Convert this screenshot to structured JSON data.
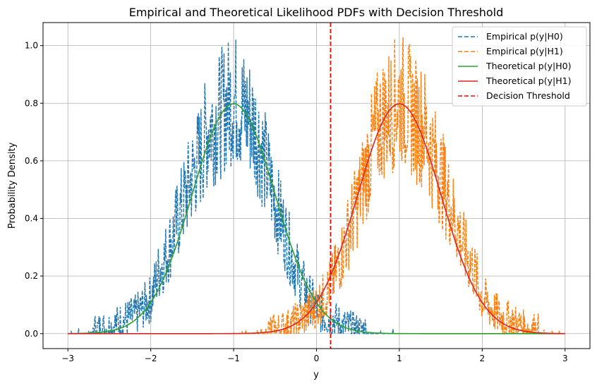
{
  "chart_data": {
    "type": "line",
    "title": "Empirical and Theoretical Likelihood PDFs with Decision Threshold",
    "xlabel": "y",
    "ylabel": "Probability Density",
    "xlim": [
      -3.3,
      3.3
    ],
    "ylim": [
      -0.052,
      1.08
    ],
    "xticks": [
      -3,
      -2,
      -1,
      0,
      1,
      2,
      3
    ],
    "xtick_labels": [
      "−3",
      "−2",
      "−1",
      "0",
      "1",
      "2",
      "3"
    ],
    "yticks": [
      0.0,
      0.2,
      0.4,
      0.6,
      0.8,
      1.0
    ],
    "ytick_labels": [
      "0.0",
      "0.2",
      "0.4",
      "0.6",
      "0.8",
      "1.0"
    ],
    "grid": true,
    "legend_position": "top-right",
    "decision_threshold": 0.17,
    "series": [
      {
        "name": "Empirical p(y|H0)",
        "style": "dashed",
        "color": "#1f77b4",
        "x": [
          -3.0,
          -2.7,
          -2.5,
          -2.3,
          -2.2,
          -2.1,
          -2.0,
          -1.9,
          -1.8,
          -1.7,
          -1.6,
          -1.5,
          -1.4,
          -1.3,
          -1.2,
          -1.1,
          -1.0,
          -0.9,
          -0.8,
          -0.7,
          -0.6,
          -0.5,
          -0.4,
          -0.3,
          -0.2,
          -0.1,
          0.0,
          0.1,
          0.2,
          0.3,
          0.4,
          0.5,
          0.6,
          0.8,
          1.0
        ],
        "y": [
          0.0,
          0.01,
          0.02,
          0.05,
          0.06,
          0.09,
          0.12,
          0.22,
          0.28,
          0.37,
          0.46,
          0.55,
          0.62,
          0.72,
          0.74,
          0.79,
          0.82,
          0.78,
          0.75,
          0.68,
          0.57,
          0.46,
          0.37,
          0.27,
          0.19,
          0.13,
          0.09,
          0.06,
          0.05,
          0.03,
          0.02,
          0.01,
          0.01,
          0.0,
          0.0
        ],
        "noise_peaks": [
          0.98,
          1.03
        ]
      },
      {
        "name": "Empirical p(y|H1)",
        "style": "dashed",
        "color": "#ff7f0e",
        "x": [
          -1.0,
          -0.8,
          -0.6,
          -0.5,
          -0.4,
          -0.3,
          -0.2,
          -0.1,
          0.0,
          0.1,
          0.2,
          0.3,
          0.4,
          0.5,
          0.6,
          0.7,
          0.8,
          0.9,
          1.0,
          1.1,
          1.2,
          1.3,
          1.4,
          1.5,
          1.6,
          1.7,
          1.8,
          1.9,
          2.0,
          2.1,
          2.2,
          2.3,
          2.5,
          2.7,
          2.95
        ],
        "y": [
          0.0,
          0.0,
          0.01,
          0.01,
          0.02,
          0.03,
          0.05,
          0.07,
          0.1,
          0.13,
          0.19,
          0.27,
          0.37,
          0.46,
          0.57,
          0.68,
          0.75,
          0.78,
          0.82,
          0.79,
          0.74,
          0.72,
          0.62,
          0.55,
          0.46,
          0.37,
          0.28,
          0.22,
          0.12,
          0.09,
          0.06,
          0.05,
          0.02,
          0.01,
          0.0
        ],
        "noise_peaks": [
          0.98,
          1.03
        ]
      },
      {
        "name": "Theoretical p(y|H0)",
        "style": "solid",
        "color": "#2ca02c",
        "mean": -1,
        "std": 0.5,
        "x_range": [
          -3,
          3
        ]
      },
      {
        "name": "Theoretical p(y|H1)",
        "style": "solid",
        "color": "#d62728",
        "mean": 1,
        "std": 0.5,
        "x_range": [
          -3,
          3
        ]
      },
      {
        "name": "Decision Threshold",
        "style": "dashed",
        "color": "#ff0000",
        "x": 0.17
      }
    ]
  }
}
